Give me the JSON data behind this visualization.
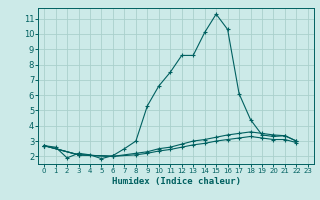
{
  "xlabel": "Humidex (Indice chaleur)",
  "bg_color": "#cceae8",
  "grid_color": "#aad0cc",
  "line_color": "#006060",
  "xlim": [
    -0.5,
    23.5
  ],
  "ylim": [
    1.5,
    11.7
  ],
  "yticks": [
    2,
    3,
    4,
    5,
    6,
    7,
    8,
    9,
    10,
    11
  ],
  "xticks": [
    0,
    1,
    2,
    3,
    4,
    5,
    6,
    7,
    8,
    9,
    10,
    11,
    12,
    13,
    14,
    15,
    16,
    17,
    18,
    19,
    20,
    21,
    22,
    23
  ],
  "series": [
    {
      "x": [
        0,
        1,
        2,
        3,
        4,
        5,
        6,
        7,
        8,
        9,
        10,
        11,
        12,
        13,
        14,
        15,
        16,
        17,
        18,
        19,
        20,
        21,
        22
      ],
      "y": [
        2.7,
        2.6,
        1.9,
        2.2,
        2.1,
        1.85,
        2.05,
        2.5,
        3.0,
        5.3,
        6.6,
        7.5,
        8.6,
        8.6,
        10.1,
        11.3,
        10.3,
        6.1,
        4.4,
        3.4,
        3.3,
        3.35,
        3.0
      ]
    },
    {
      "x": [
        0,
        3,
        6
      ],
      "y": [
        2.7,
        2.1,
        2.0
      ]
    },
    {
      "x": [
        0,
        3,
        6,
        8,
        9,
        10,
        11,
        12,
        13,
        14,
        15,
        16,
        17,
        18,
        19,
        20,
        21,
        22
      ],
      "y": [
        2.7,
        2.1,
        2.0,
        2.2,
        2.3,
        2.5,
        2.6,
        2.8,
        3.0,
        3.1,
        3.25,
        3.4,
        3.5,
        3.6,
        3.5,
        3.4,
        3.35,
        3.0
      ]
    },
    {
      "x": [
        0,
        3,
        6,
        8,
        9,
        10,
        11,
        12,
        13,
        14,
        15,
        16,
        17,
        18,
        19,
        20,
        21,
        22
      ],
      "y": [
        2.7,
        2.1,
        2.0,
        2.1,
        2.2,
        2.35,
        2.45,
        2.6,
        2.75,
        2.85,
        3.0,
        3.1,
        3.2,
        3.3,
        3.2,
        3.1,
        3.1,
        2.9
      ]
    }
  ]
}
